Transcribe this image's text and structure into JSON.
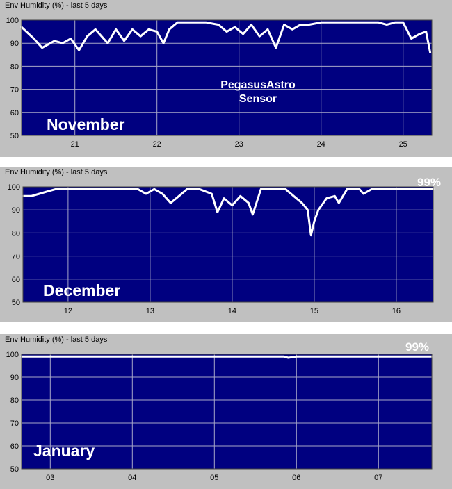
{
  "chart_data": [
    {
      "type": "line",
      "title": "Env Humidity (%) - last 5 days",
      "month_label": "November",
      "annotation": "PegasusAstro\nSensor",
      "current_value_label": "",
      "ylim": [
        50,
        100
      ],
      "yticks": [
        50,
        60,
        70,
        80,
        90,
        100
      ],
      "xlim": [
        20.35,
        25.35
      ],
      "xticks": [
        21,
        22,
        23,
        24,
        25
      ],
      "xtick_labels": [
        "21",
        "22",
        "23",
        "24",
        "25"
      ],
      "grid": true,
      "background": "#000080",
      "line_color": "#ffffff",
      "series": [
        {
          "x": [
            20.35,
            20.5,
            20.6,
            20.75,
            20.85,
            20.95,
            21.05,
            21.15,
            21.25,
            21.4,
            21.5,
            21.6,
            21.7,
            21.8,
            21.9,
            22.0,
            22.08,
            22.15,
            22.25,
            22.35,
            22.45,
            22.6,
            22.75,
            22.85,
            22.95,
            23.05,
            23.15,
            23.25,
            23.35,
            23.45,
            23.55,
            23.65,
            23.75,
            23.85,
            24.0,
            24.2,
            24.4,
            24.6,
            24.7,
            24.8,
            24.9,
            25.0,
            25.1,
            25.2,
            25.28,
            25.33
          ],
          "values": [
            97,
            92,
            88,
            91,
            90,
            92,
            87,
            93,
            96,
            90,
            96,
            91,
            96,
            93,
            96,
            95,
            90,
            96,
            99,
            99,
            99,
            99,
            98,
            95,
            97,
            94,
            98,
            93,
            96,
            88,
            98,
            96,
            98,
            98,
            99,
            99,
            99,
            99,
            99,
            98,
            99,
            99,
            92,
            94,
            95,
            86
          ]
        }
      ]
    },
    {
      "type": "line",
      "title": "Env Humidity (%) - last 5 days",
      "month_label": "December",
      "annotation": "",
      "current_value_label": "99%",
      "ylim": [
        50,
        100
      ],
      "yticks": [
        50,
        60,
        70,
        80,
        90,
        100
      ],
      "xlim": [
        11.45,
        16.45
      ],
      "xticks": [
        12,
        13,
        14,
        15,
        16
      ],
      "xtick_labels": [
        "12",
        "13",
        "14",
        "15",
        "16"
      ],
      "grid": true,
      "background": "#000080",
      "line_color": "#ffffff",
      "series": [
        {
          "x": [
            11.45,
            11.55,
            11.65,
            11.75,
            11.85,
            12.0,
            12.4,
            12.85,
            12.95,
            13.05,
            13.15,
            13.25,
            13.35,
            13.45,
            13.6,
            13.75,
            13.82,
            13.9,
            14.0,
            14.1,
            14.2,
            14.25,
            14.35,
            14.5,
            14.65,
            14.75,
            14.85,
            14.92,
            14.96,
            15.0,
            15.05,
            15.15,
            15.25,
            15.3,
            15.4,
            15.55,
            15.6,
            15.7,
            15.8,
            16.0,
            16.2,
            16.45
          ],
          "values": [
            96,
            96,
            97,
            98,
            99,
            99,
            99,
            99,
            97,
            99,
            97,
            93,
            96,
            99,
            99,
            97,
            89,
            95,
            92,
            96,
            93,
            88,
            99,
            99,
            99,
            96,
            93,
            90,
            79,
            85,
            90,
            95,
            96,
            93,
            99,
            99,
            97,
            99,
            99,
            99,
            99,
            99
          ]
        }
      ]
    },
    {
      "type": "line",
      "title": "Env Humidity (%) - last 5 days",
      "month_label": "January",
      "annotation": "",
      "current_value_label": "99%",
      "ylim": [
        50,
        100
      ],
      "yticks": [
        50,
        60,
        70,
        80,
        90,
        100
      ],
      "xlim": [
        2.65,
        7.65
      ],
      "xticks": [
        3,
        4,
        5,
        6,
        7
      ],
      "xtick_labels": [
        "03",
        "04",
        "05",
        "06",
        "07"
      ],
      "grid": true,
      "background": "#000080",
      "line_color": "#ffffff",
      "series": [
        {
          "x": [
            2.65,
            3.5,
            4.5,
            5.5,
            5.85,
            5.9,
            6.0,
            6.05,
            6.5,
            7.0,
            7.65
          ],
          "values": [
            99,
            99,
            99,
            99,
            99,
            98.5,
            99,
            99,
            99,
            99,
            99
          ]
        }
      ]
    }
  ]
}
